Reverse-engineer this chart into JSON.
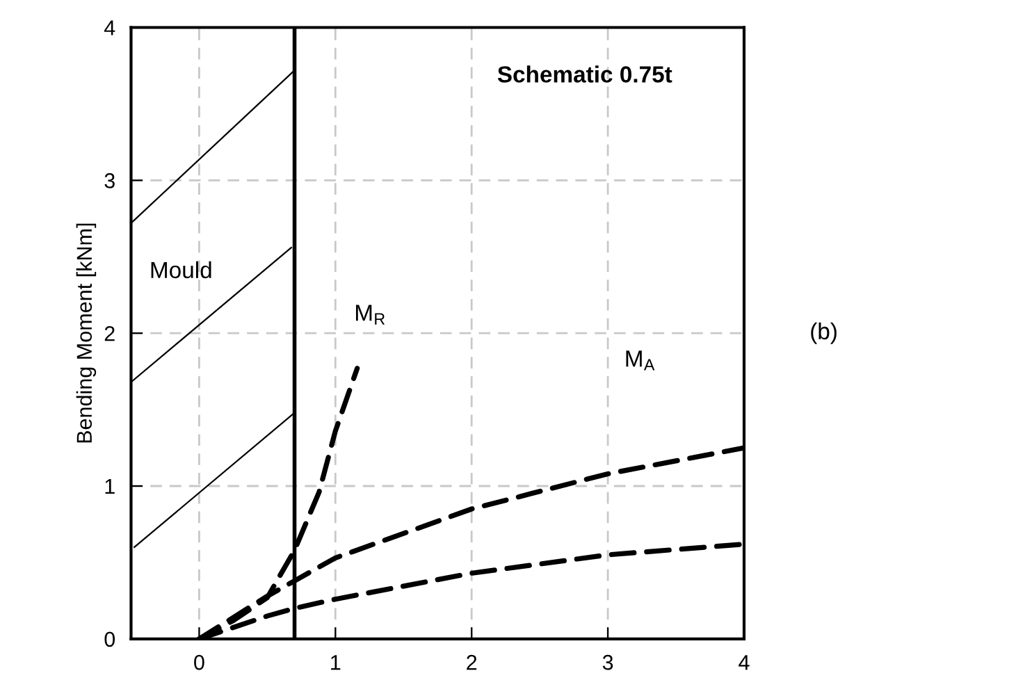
{
  "chart_data": {
    "type": "line",
    "title": "Schematic 0.75t",
    "ylabel": "Bending Moment [kNm]",
    "xlim": [
      -0.5,
      4
    ],
    "ylim": [
      0,
      4
    ],
    "xticks": [
      0,
      1,
      2,
      3,
      4
    ],
    "yticks": [
      0,
      1,
      2,
      3,
      4
    ],
    "grid": true,
    "line_style": "dashed",
    "marker": "none",
    "series": [
      {
        "color": "#000000",
        "x": [
          0,
          0.25,
          0.5,
          0.7,
          0.88,
          1.0,
          1.16
        ],
        "values": [
          0,
          0.12,
          0.27,
          0.58,
          0.96,
          1.36,
          1.77
        ]
      },
      {
        "color": "#000000",
        "x": [
          0,
          0.5,
          0.7,
          1,
          2,
          3,
          4
        ],
        "values": [
          0,
          0.28,
          0.38,
          0.53,
          0.85,
          1.08,
          1.25
        ]
      },
      {
        "color": "#000000",
        "x": [
          0,
          0.5,
          0.7,
          1,
          2,
          3,
          4
        ],
        "values": [
          0,
          0.15,
          0.2,
          0.26,
          0.43,
          0.55,
          0.62
        ]
      }
    ],
    "ref_lines": [
      {
        "axis": "x",
        "value": 0.7,
        "color": "#000000",
        "line_style": "solid"
      }
    ],
    "annotations": [
      "Mould",
      "M$_{R}$",
      "M$_{A}$",
      "(b)"
    ]
  }
}
